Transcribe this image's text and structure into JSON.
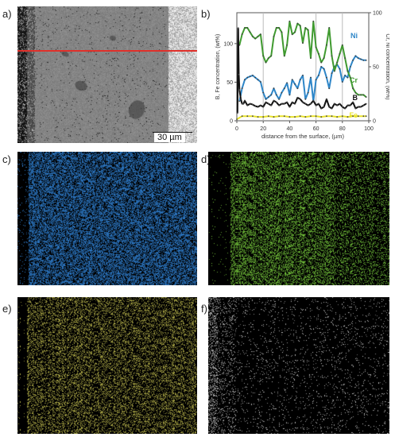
{
  "panels": {
    "a": {
      "label": "a)",
      "scale_bar": "30 µm"
    },
    "b": {
      "label": "b)"
    },
    "c": {
      "label": "c)",
      "element_color": "#2f7fd0"
    },
    "d": {
      "label": "d)",
      "element_color": "#73c23a"
    },
    "e": {
      "label": "e)",
      "element_color": "#b6b24a"
    },
    "f": {
      "label": "f)",
      "element_color": "#c9c9c9"
    }
  },
  "chart_data": {
    "type": "line",
    "xlabel": "distance from the surface, (µm)",
    "ylabel_left": "B, Fe concentration, (wt%)",
    "ylabel_right": "Cr, Ni concentration, (wt%)",
    "xlim": [
      0,
      100
    ],
    "ylim_left": [
      0,
      140
    ],
    "ylim_right": [
      0,
      100
    ],
    "xticks": [
      "0",
      "20",
      "40",
      "60",
      "80",
      "100"
    ],
    "yticks_left": [
      "0",
      "50",
      "100"
    ],
    "yticks_right": [
      "0",
      "50",
      "100"
    ],
    "vertical_gridlines": [
      20,
      60,
      80
    ],
    "series": [
      {
        "name": "Ni",
        "color": "#2e86c8",
        "axis": "right",
        "x": [
          2,
          4,
          6,
          8,
          10,
          12,
          14,
          16,
          18,
          20,
          22,
          24,
          26,
          28,
          30,
          32,
          34,
          36,
          38,
          40,
          42,
          44,
          46,
          48,
          50,
          52,
          54,
          56,
          58,
          60,
          62,
          64,
          66,
          68,
          70,
          72,
          74,
          76,
          78,
          80,
          82,
          84,
          86,
          88,
          90,
          92,
          94,
          96,
          98
        ],
        "y": [
          18,
          30,
          38,
          40,
          41,
          42,
          40,
          38,
          36,
          26,
          20,
          22,
          24,
          30,
          24,
          20,
          26,
          30,
          35,
          24,
          38,
          34,
          30,
          38,
          42,
          20,
          26,
          40,
          18,
          38,
          42,
          50,
          48,
          40,
          30,
          44,
          50,
          52,
          48,
          36,
          42,
          40,
          50,
          56,
          60,
          58,
          57,
          56,
          56
        ]
      },
      {
        "name": "Cr",
        "color": "#3f9a2f",
        "axis": "right",
        "x": [
          2,
          4,
          6,
          8,
          10,
          12,
          14,
          16,
          18,
          20,
          22,
          24,
          26,
          28,
          30,
          32,
          34,
          36,
          38,
          40,
          42,
          44,
          46,
          48,
          50,
          52,
          54,
          56,
          58,
          60,
          62,
          64,
          66,
          68,
          70,
          72,
          74,
          76,
          78,
          80,
          82,
          84,
          86,
          88,
          90,
          92,
          94,
          96,
          98
        ],
        "y": [
          70,
          80,
          86,
          86,
          82,
          78,
          76,
          78,
          80,
          60,
          54,
          58,
          60,
          78,
          86,
          86,
          82,
          60,
          70,
          92,
          80,
          82,
          90,
          88,
          72,
          86,
          84,
          58,
          92,
          68,
          62,
          54,
          58,
          70,
          86,
          60,
          46,
          54,
          62,
          70,
          58,
          46,
          40,
          30,
          26,
          24,
          24,
          24,
          22
        ]
      },
      {
        "name": "B",
        "color": "#111111",
        "axis": "left",
        "x": [
          0.5,
          1,
          1.5,
          2,
          3,
          4,
          5,
          6,
          8,
          10,
          12,
          14,
          16,
          18,
          20,
          22,
          24,
          26,
          28,
          30,
          32,
          34,
          36,
          38,
          40,
          42,
          44,
          46,
          48,
          50,
          52,
          54,
          56,
          58,
          60,
          62,
          64,
          66,
          68,
          70,
          72,
          74,
          76,
          78,
          80,
          82,
          84,
          86,
          88,
          90,
          92,
          94,
          96,
          98
        ],
        "y": [
          10,
          120,
          60,
          40,
          28,
          22,
          22,
          26,
          20,
          22,
          21,
          19,
          18,
          20,
          18,
          24,
          22,
          20,
          26,
          24,
          20,
          22,
          22,
          24,
          18,
          24,
          22,
          30,
          28,
          24,
          22,
          20,
          22,
          26,
          20,
          22,
          16,
          18,
          28,
          18,
          16,
          22,
          20,
          22,
          18,
          16,
          20,
          20,
          24,
          16,
          18,
          18,
          20,
          22
        ]
      },
      {
        "name": "Fe",
        "color": "#e8e22a",
        "axis": "left",
        "x": [
          0,
          4,
          8,
          12,
          16,
          20,
          24,
          28,
          32,
          36,
          40,
          44,
          48,
          52,
          56,
          60,
          64,
          68,
          72,
          76,
          80,
          84,
          88,
          92,
          96,
          98
        ],
        "y": [
          2,
          6,
          6,
          6,
          5,
          5,
          6,
          5,
          6,
          6,
          5,
          5,
          6,
          5,
          6,
          6,
          5,
          6,
          6,
          5,
          6,
          5,
          6,
          6,
          6,
          6
        ]
      }
    ]
  }
}
